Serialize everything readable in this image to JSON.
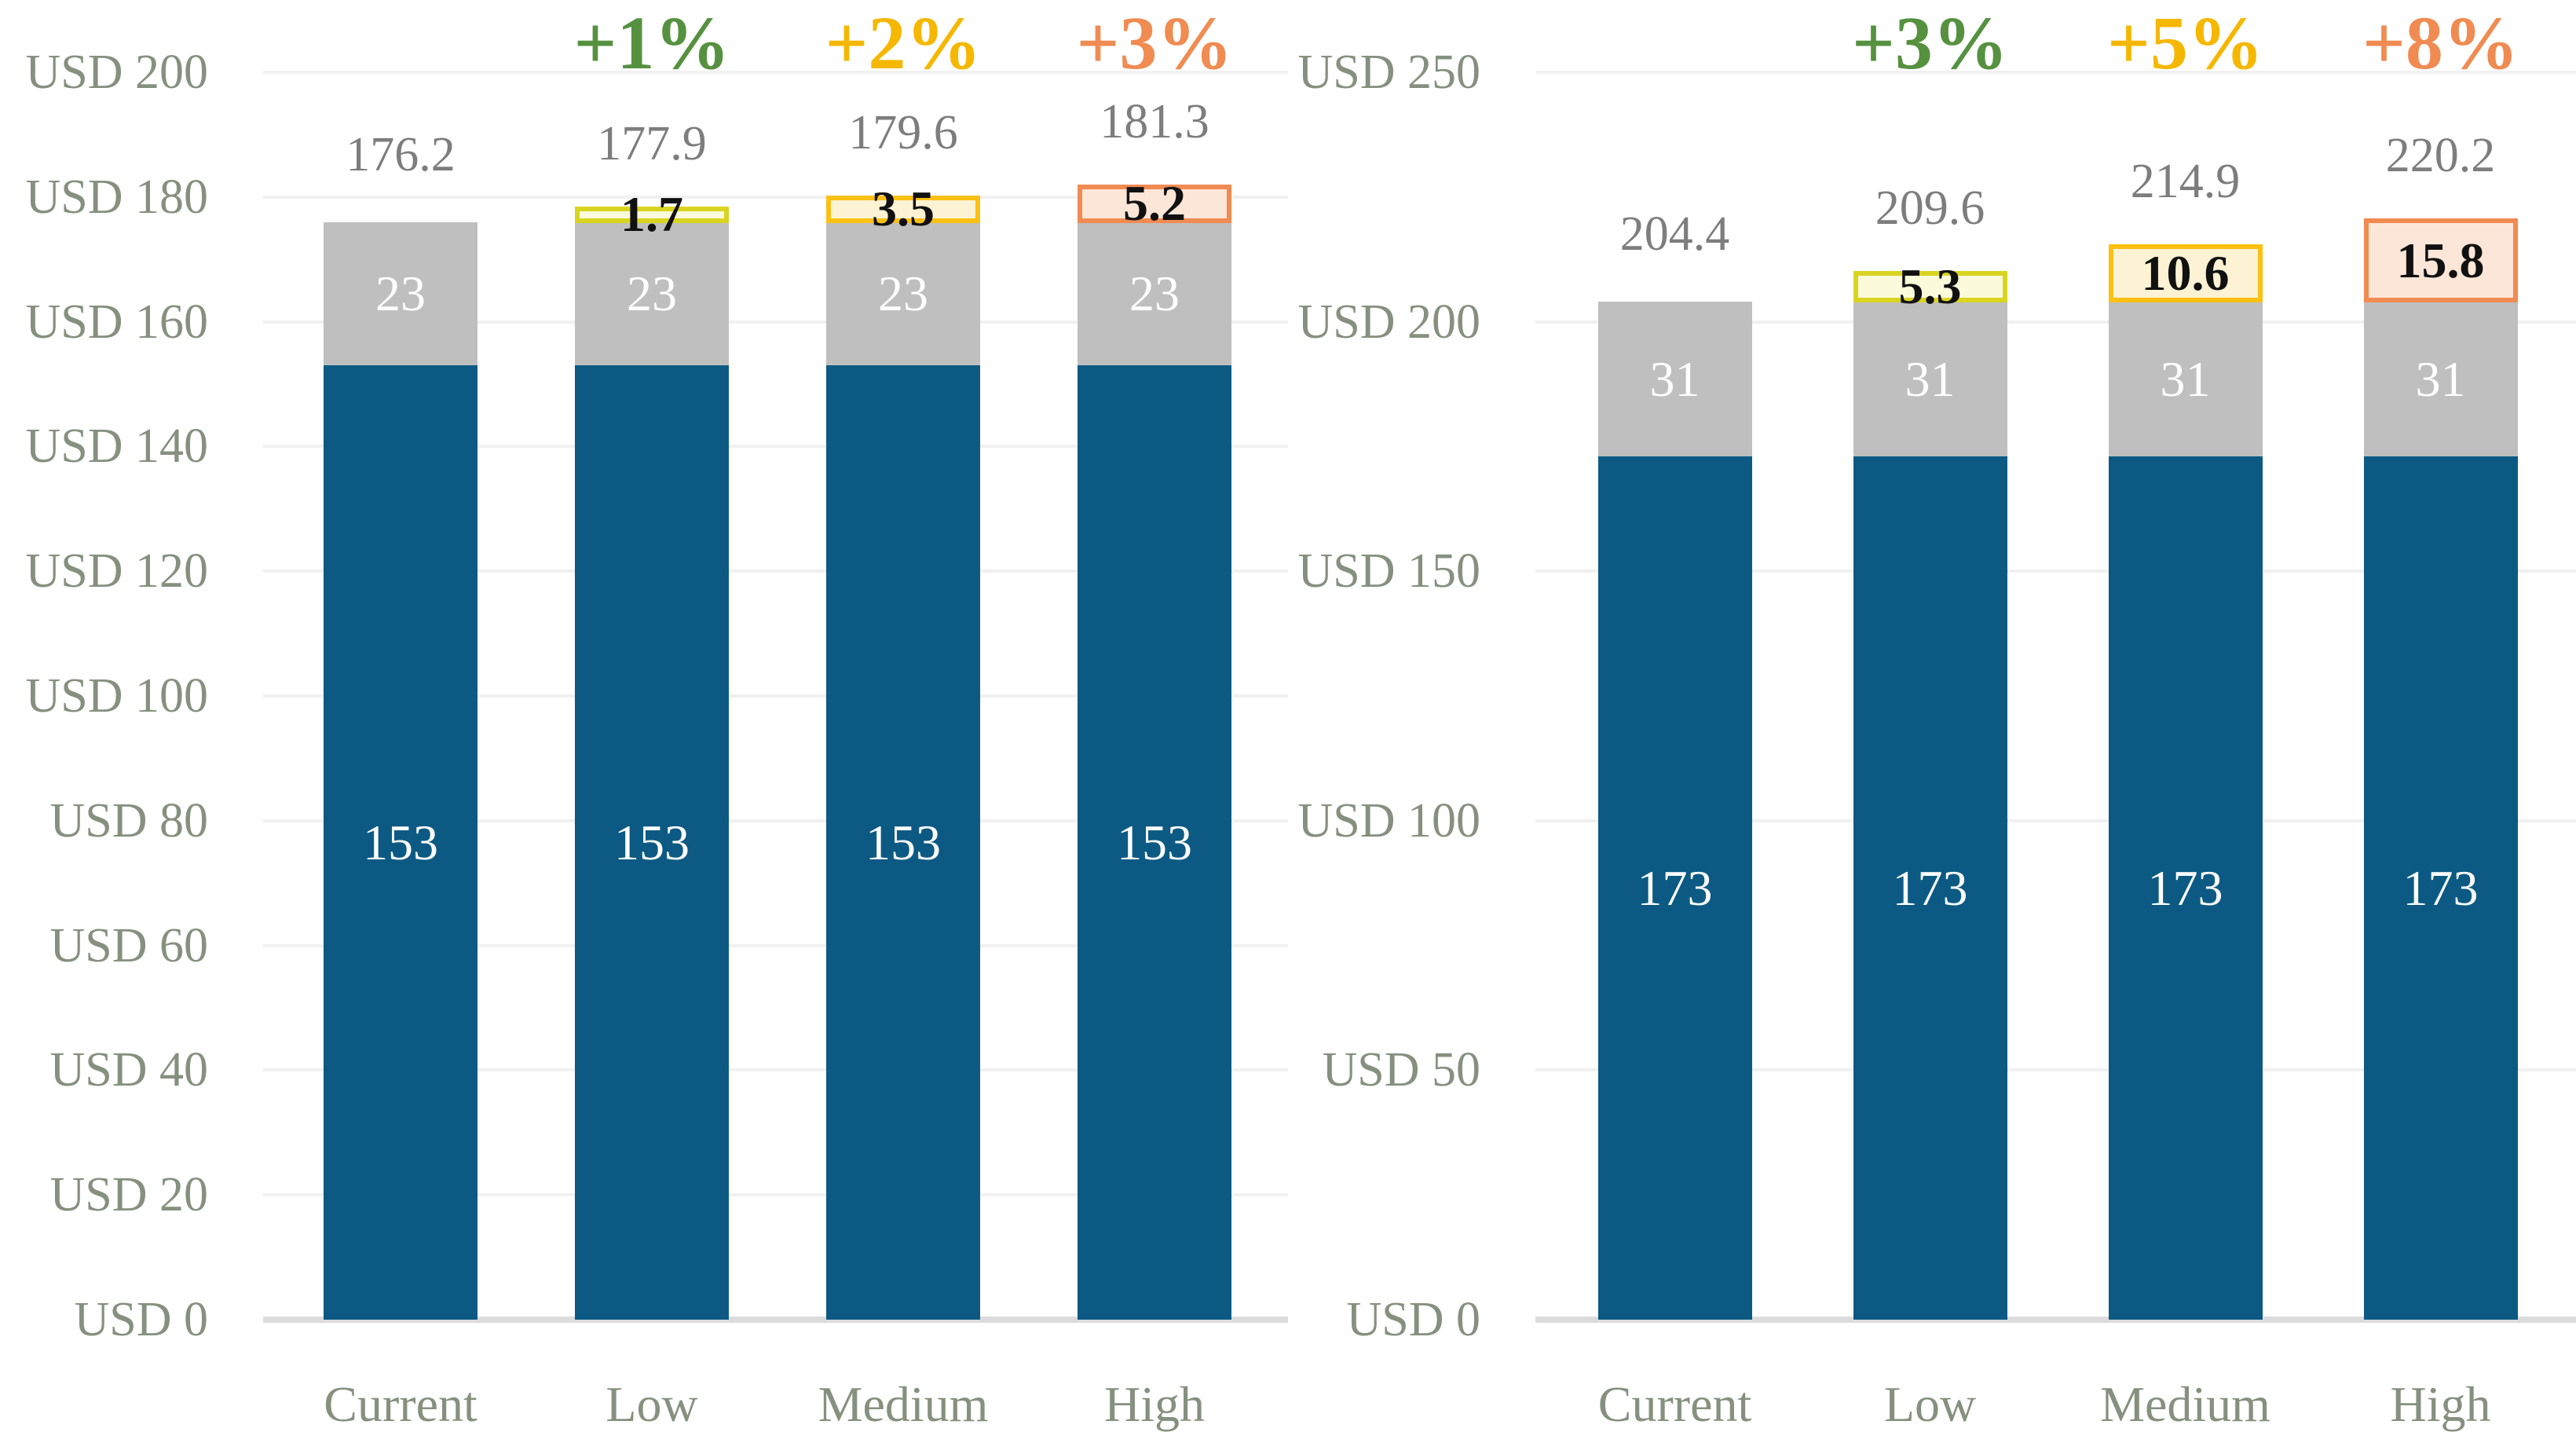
{
  "styles": {
    "bar_blue": "#0c5a84",
    "bar_gray": "#bfbfbf",
    "grid_color": "#f1f1f1",
    "axis_line_color": "#dcdcdc",
    "axis_label_color": "#86907f",
    "total_label_color": "#7d7d7d",
    "segment_label_color": "#ffffff",
    "increment_label_color": "#111111",
    "growth_colors": {
      "green": "#569140",
      "gold": "#f5b700",
      "orange": "#f08b52"
    },
    "increment_styles": {
      "yellow": {
        "border": "#d9d41f",
        "fill": "#fbfada"
      },
      "gold": {
        "border": "#fcc013",
        "fill": "#fdf3d4"
      },
      "orange": {
        "border": "#f08b52",
        "fill": "#fce6d7"
      }
    }
  },
  "chart_data": [
    {
      "type": "bar",
      "stacked": true,
      "title": "",
      "legend": false,
      "grid": true,
      "y_axis": {
        "prefix": "USD",
        "min": 0,
        "max": 200,
        "step": 20,
        "tick_labels": [
          "USD 0",
          "USD 20",
          "USD 40",
          "USD 60",
          "USD 80",
          "USD 100",
          "USD 120",
          "USD 140",
          "USD 160",
          "USD 180",
          "USD 200"
        ]
      },
      "categories": [
        "Current",
        "Low",
        "Medium",
        "High"
      ],
      "series": [
        {
          "name": "base",
          "values": [
            153,
            153,
            153,
            153
          ]
        },
        {
          "name": "upper",
          "values": [
            23,
            23,
            23,
            23
          ]
        },
        {
          "name": "increment",
          "values": [
            null,
            1.7,
            3.5,
            5.2
          ]
        }
      ],
      "segment_labels": {
        "base": [
          "153",
          "153",
          "153",
          "153"
        ],
        "upper": [
          "23",
          "23",
          "23",
          "23"
        ],
        "increment": [
          null,
          "1.7",
          "3.5",
          "5.2"
        ]
      },
      "increment_style_keys": [
        null,
        "yellow",
        "gold",
        "orange"
      ],
      "totals": [
        "176.2",
        "177.9",
        "179.6",
        "181.3"
      ],
      "growth_labels": [
        null,
        {
          "text": "+1%",
          "color_key": "green"
        },
        {
          "text": "+2%",
          "color_key": "gold"
        },
        {
          "text": "+3%",
          "color_key": "orange"
        }
      ]
    },
    {
      "type": "bar",
      "stacked": true,
      "title": "",
      "legend": false,
      "grid": true,
      "y_axis": {
        "prefix": "USD",
        "min": 0,
        "max": 250,
        "step": 50,
        "tick_labels": [
          "USD 0",
          "USD 50",
          "USD 100",
          "USD 150",
          "USD 200",
          "USD 250"
        ]
      },
      "categories": [
        "Current",
        "Low",
        "Medium",
        "High"
      ],
      "series": [
        {
          "name": "base",
          "values": [
            173,
            173,
            173,
            173
          ]
        },
        {
          "name": "upper",
          "values": [
            31,
            31,
            31,
            31
          ]
        },
        {
          "name": "increment",
          "values": [
            null,
            5.3,
            10.6,
            15.8
          ]
        }
      ],
      "segment_labels": {
        "base": [
          "173",
          "173",
          "173",
          "173"
        ],
        "upper": [
          "31",
          "31",
          "31",
          "31"
        ],
        "increment": [
          null,
          "5.3",
          "10.6",
          "15.8"
        ]
      },
      "increment_style_keys": [
        null,
        "yellow",
        "gold",
        "orange"
      ],
      "totals": [
        "204.4",
        "209.6",
        "214.9",
        "220.2"
      ],
      "growth_labels": [
        null,
        {
          "text": "+3%",
          "color_key": "green"
        },
        {
          "text": "+5%",
          "color_key": "gold"
        },
        {
          "text": "+8%",
          "color_key": "orange"
        }
      ]
    }
  ]
}
